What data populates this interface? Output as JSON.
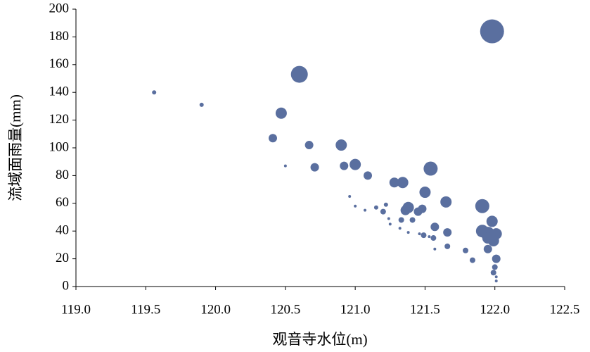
{
  "chart_data": {
    "type": "scatter",
    "color": "#5a6f9f",
    "x_label": "观音寺水位(m)",
    "y_label": "流域面雨量(mm)",
    "xlim": [
      119,
      122.5
    ],
    "xticks": [
      {
        "value": 119,
        "label": "119.0"
      },
      119.5,
      {
        "value": 120,
        "label": "120.0"
      },
      120.5,
      {
        "value": 121,
        "label": "121.0"
      },
      121.5,
      {
        "value": 122,
        "label": "122.0"
      },
      122.5
    ],
    "ylim": [
      0,
      200
    ],
    "yticks": [
      0,
      20,
      40,
      60,
      80,
      100,
      120,
      140,
      160,
      180,
      200
    ],
    "x": [
      121.98,
      120.6,
      119.56,
      119.9,
      120.47,
      120.41,
      120.67,
      120.9,
      120.5,
      120.71,
      120.92,
      121.0,
      121.09,
      121.54,
      121.28,
      121.34,
      121.5,
      120.96,
      121.65,
      121.91,
      121.0,
      121.07,
      121.15,
      121.22,
      121.2,
      121.38,
      121.36,
      121.48,
      121.45,
      121.98,
      121.24,
      121.33,
      121.41,
      121.25,
      121.57,
      121.32,
      121.91,
      121.66,
      121.38,
      121.46,
      121.49,
      121.53,
      121.56,
      121.95,
      122.01,
      121.99,
      121.95,
      121.66,
      121.57,
      121.95,
      121.79,
      121.84,
      122.01,
      122.0,
      121.99,
      122.01,
      122.01
    ],
    "values": [
      184,
      153,
      140,
      131,
      125,
      107,
      102,
      102,
      87,
      86,
      87,
      88,
      80,
      85,
      75,
      75,
      68,
      65,
      61,
      58,
      58,
      55,
      57,
      59,
      54,
      57,
      55,
      56,
      54,
      47,
      49,
      48,
      48,
      45,
      43,
      42,
      40,
      39,
      39,
      38,
      37,
      36,
      35,
      38,
      38,
      33,
      35,
      29,
      27,
      27,
      26,
      19,
      20,
      14,
      10,
      7,
      4
    ],
    "sizes": [
      17,
      12,
      3,
      3,
      8,
      6,
      6,
      8,
      2,
      6,
      6,
      8,
      6,
      10,
      7,
      8,
      8,
      2,
      8,
      10,
      2,
      2,
      3,
      3,
      4,
      8,
      7,
      6,
      6,
      8,
      2,
      4,
      4,
      2,
      6,
      2,
      9,
      6,
      2,
      2,
      4,
      2,
      4,
      10,
      8,
      8,
      8,
      4,
      2,
      6,
      4,
      4,
      6,
      4,
      4,
      2,
      2
    ]
  }
}
